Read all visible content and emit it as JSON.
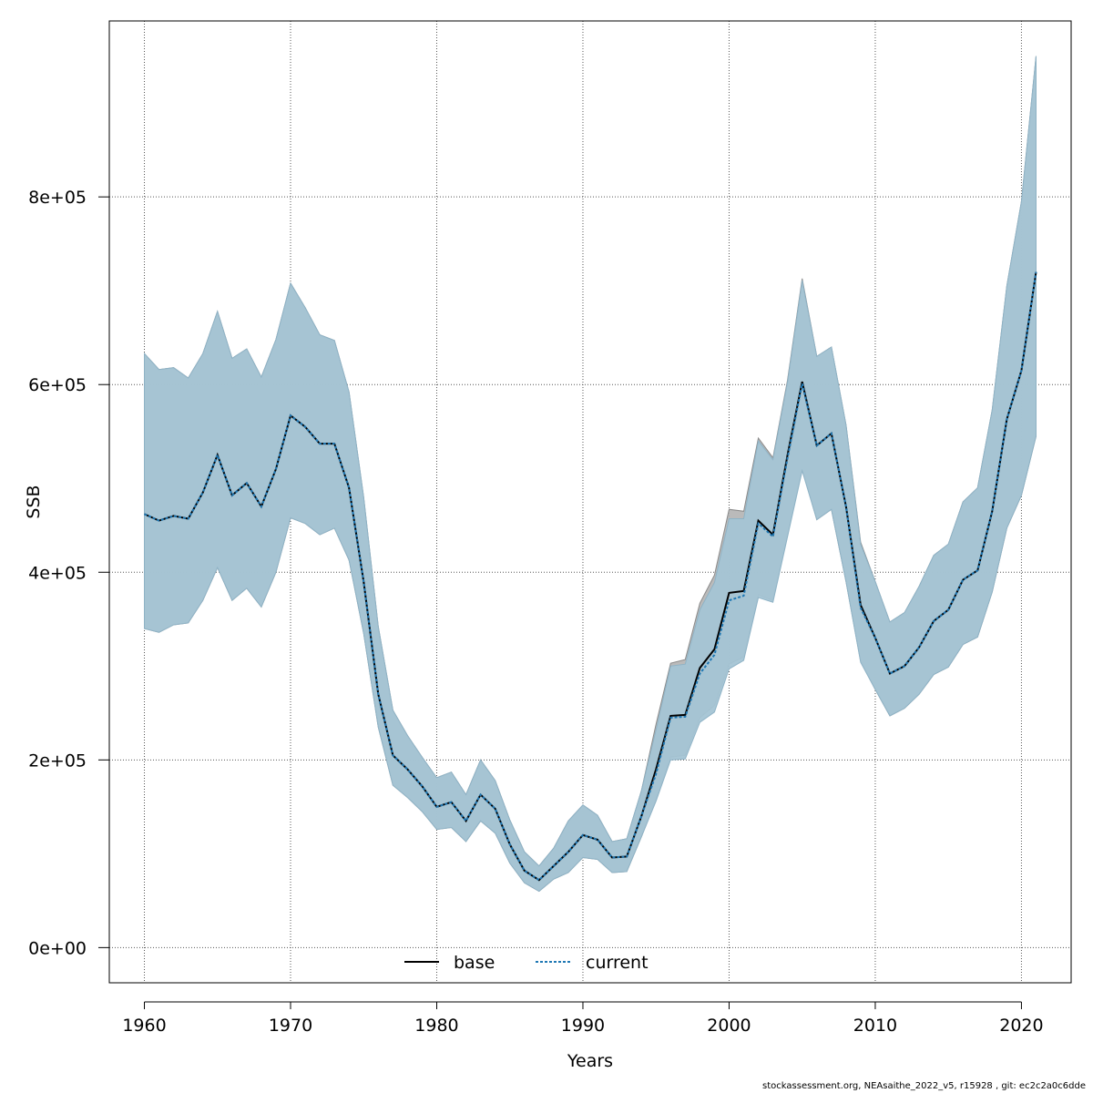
{
  "chart_data": {
    "type": "area",
    "xlabel": "Years",
    "ylabel": "SSB",
    "xlim": [
      1957.6,
      2023.4
    ],
    "ylim": [
      -37500,
      987500
    ],
    "x_ticks": [
      1960,
      1970,
      1980,
      1990,
      2000,
      2010,
      2020
    ],
    "x_tick_labels": [
      "1960",
      "1970",
      "1980",
      "1990",
      "2000",
      "2010",
      "2020"
    ],
    "y_ticks": [
      0,
      200000,
      400000,
      600000,
      800000
    ],
    "y_tick_labels": [
      "0e+00",
      "2e+05",
      "4e+05",
      "6e+05",
      "8e+05"
    ],
    "grid": true,
    "legend_position": "bottom-center",
    "colors": {
      "base_band": "#b3b3b3",
      "current_band": "#a4c4d4",
      "current_line": "#1f78b4",
      "base_line": "#000000"
    },
    "x": [
      1960,
      1961,
      1962,
      1963,
      1964,
      1965,
      1966,
      1967,
      1968,
      1969,
      1970,
      1971,
      1972,
      1973,
      1974,
      1975,
      1976,
      1977,
      1978,
      1979,
      1980,
      1981,
      1982,
      1983,
      1984,
      1985,
      1986,
      1987,
      1988,
      1989,
      1990,
      1991,
      1992,
      1993,
      1994,
      1995,
      1996,
      1997,
      1998,
      1999,
      2000,
      2001,
      2002,
      2003,
      2004,
      2005,
      2006,
      2007,
      2008,
      2009,
      2010,
      2011,
      2012,
      2013,
      2014,
      2015,
      2016,
      2017,
      2018,
      2019,
      2020,
      2021
    ],
    "series": [
      {
        "name": "base",
        "values": [
          462000,
          455000,
          460000,
          457000,
          485000,
          525000,
          482000,
          495000,
          470000,
          510000,
          567000,
          555000,
          537000,
          537000,
          490000,
          390000,
          270000,
          205000,
          190000,
          172000,
          150000,
          155000,
          135000,
          163000,
          148000,
          110000,
          82000,
          72000,
          87000,
          102000,
          120000,
          115000,
          96000,
          97000,
          140000,
          190000,
          247000,
          248000,
          298000,
          318000,
          378000,
          380000,
          455000,
          440000,
          525000,
          603000,
          535000,
          548000,
          470000,
          365000,
          330000,
          292000,
          300000,
          320000,
          348000,
          360000,
          392000,
          402000,
          465000,
          563000,
          615000,
          720000
        ],
        "lower": [
          340000,
          336000,
          344000,
          346000,
          370000,
          405000,
          370000,
          383000,
          363000,
          400000,
          458000,
          452000,
          440000,
          447000,
          413000,
          335000,
          235000,
          173000,
          160000,
          145000,
          126000,
          128000,
          113000,
          135000,
          122000,
          90000,
          69000,
          60000,
          73000,
          80000,
          96000,
          94000,
          80000,
          81000,
          118000,
          158000,
          203000,
          205000,
          245000,
          258000,
          302000,
          310000,
          376000,
          370000,
          440000,
          510000,
          456000,
          467000,
          390000,
          305000,
          275000,
          247000,
          255000,
          270000,
          291000,
          299000,
          323000,
          331000,
          379000,
          447000,
          482000,
          545000
        ],
        "upper": [
          633000,
          616000,
          618000,
          607000,
          633000,
          678000,
          628000,
          638000,
          608000,
          648000,
          708000,
          682000,
          653000,
          647000,
          592000,
          480000,
          342000,
          253000,
          226000,
          203000,
          181000,
          187000,
          163000,
          200000,
          178000,
          136000,
          102000,
          87000,
          106000,
          135000,
          152000,
          141000,
          113000,
          116000,
          167000,
          238000,
          303000,
          307000,
          367000,
          397000,
          467000,
          465000,
          543000,
          522000,
          605000,
          713000,
          630000,
          640000,
          557000,
          432000,
          390000,
          347000,
          357000,
          385000,
          418000,
          430000,
          475000,
          490000,
          573000,
          705000,
          795000,
          950000
        ]
      },
      {
        "name": "current",
        "values": [
          462000,
          455000,
          460000,
          457000,
          485000,
          525000,
          482000,
          495000,
          470000,
          510000,
          567000,
          555000,
          537000,
          537000,
          490000,
          390000,
          270000,
          205000,
          190000,
          172000,
          150000,
          155000,
          135000,
          163000,
          148000,
          110000,
          82000,
          72000,
          87000,
          102000,
          120000,
          115000,
          96000,
          97000,
          140000,
          185000,
          245000,
          246000,
          292000,
          312000,
          370000,
          375000,
          452000,
          438000,
          522000,
          601000,
          535000,
          548000,
          470000,
          362000,
          330000,
          292000,
          300000,
          320000,
          348000,
          360000,
          392000,
          402000,
          465000,
          563000,
          615000,
          720000
        ],
        "lower": [
          340000,
          336000,
          344000,
          346000,
          370000,
          405000,
          370000,
          383000,
          363000,
          400000,
          458000,
          452000,
          440000,
          447000,
          413000,
          335000,
          235000,
          173000,
          160000,
          145000,
          126000,
          128000,
          113000,
          135000,
          122000,
          90000,
          69000,
          60000,
          73000,
          80000,
          96000,
          94000,
          80000,
          81000,
          118000,
          156000,
          200000,
          201000,
          240000,
          251000,
          297000,
          306000,
          373000,
          368000,
          438000,
          508000,
          456000,
          467000,
          390000,
          304000,
          275000,
          247000,
          255000,
          270000,
          291000,
          299000,
          323000,
          331000,
          379000,
          447000,
          482000,
          545000
        ],
        "upper": [
          633000,
          616000,
          618000,
          607000,
          633000,
          678000,
          628000,
          638000,
          608000,
          648000,
          708000,
          682000,
          653000,
          647000,
          592000,
          480000,
          342000,
          253000,
          226000,
          203000,
          181000,
          187000,
          163000,
          200000,
          178000,
          136000,
          102000,
          87000,
          106000,
          135000,
          152000,
          141000,
          113000,
          116000,
          167000,
          232000,
          300000,
          302000,
          360000,
          389000,
          457000,
          457000,
          540000,
          520000,
          603000,
          711000,
          630000,
          640000,
          557000,
          430000,
          390000,
          347000,
          357000,
          385000,
          418000,
          430000,
          475000,
          490000,
          573000,
          705000,
          795000,
          950000
        ]
      }
    ]
  },
  "footer": "stockassessment.org, NEAsaithe_2022_v5, r15928 , git: ec2c2a0c6dde"
}
